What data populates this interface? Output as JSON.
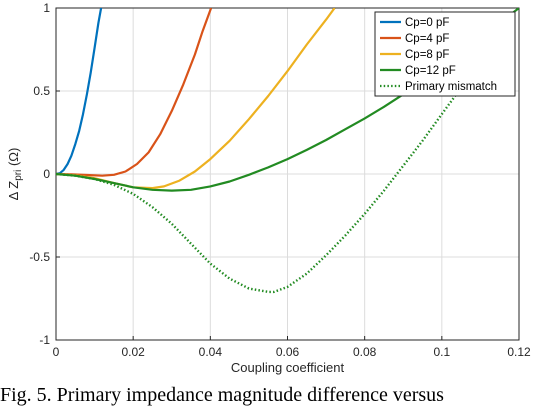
{
  "caption": "Fig. 5. Primary impedance  magnitude difference versus",
  "chart_data": {
    "type": "line",
    "title": "",
    "xlabel": "Coupling coefficient",
    "ylabel_main": "Δ Z",
    "ylabel_sub": "pri",
    "ylabel_unit": " (Ω)",
    "xlim": [
      0,
      0.12
    ],
    "ylim": [
      -1,
      1
    ],
    "xticks": [
      0,
      0.02,
      0.04,
      0.06,
      0.08,
      0.1,
      0.12
    ],
    "xtick_labels": [
      "0",
      "0.02",
      "0.04",
      "0.06",
      "0.08",
      "0.1",
      "0.12"
    ],
    "yticks": [
      -1,
      -0.5,
      0,
      0.5,
      1
    ],
    "ytick_labels": [
      "-1",
      "-0.5",
      "0",
      "0.5",
      "1"
    ],
    "grid": true,
    "legend_position": "top-right",
    "series": [
      {
        "name": "Cp=0 pF",
        "color": "#0072BD",
        "style": "solid",
        "x": [
          0,
          0.001,
          0.002,
          0.003,
          0.004,
          0.005,
          0.006,
          0.007,
          0.008,
          0.009,
          0.01,
          0.011,
          0.0117
        ],
        "y": [
          0,
          0.005,
          0.025,
          0.06,
          0.11,
          0.18,
          0.26,
          0.36,
          0.48,
          0.61,
          0.76,
          0.91,
          1.0
        ]
      },
      {
        "name": "Cp=4 pF",
        "color": "#D95319",
        "style": "solid",
        "x": [
          0,
          0.004,
          0.008,
          0.012,
          0.015,
          0.018,
          0.021,
          0.024,
          0.027,
          0.03,
          0.033,
          0.036,
          0.038,
          0.0402
        ],
        "y": [
          0,
          -0.002,
          -0.006,
          -0.01,
          -0.005,
          0.015,
          0.06,
          0.13,
          0.24,
          0.38,
          0.54,
          0.72,
          0.86,
          1.0
        ]
      },
      {
        "name": "Cp=8 pF",
        "color": "#EDB120",
        "style": "solid",
        "x": [
          0,
          0.005,
          0.01,
          0.015,
          0.02,
          0.025,
          0.028,
          0.032,
          0.036,
          0.04,
          0.045,
          0.05,
          0.055,
          0.06,
          0.065,
          0.07,
          0.0722
        ],
        "y": [
          0,
          -0.008,
          -0.025,
          -0.055,
          -0.08,
          -0.085,
          -0.075,
          -0.04,
          0.015,
          0.09,
          0.2,
          0.33,
          0.47,
          0.62,
          0.78,
          0.93,
          1.0
        ]
      },
      {
        "name": "Cp=12 pF",
        "color": "#228B22",
        "style": "solid",
        "x": [
          0,
          0.005,
          0.01,
          0.015,
          0.02,
          0.025,
          0.03,
          0.035,
          0.04,
          0.045,
          0.05,
          0.055,
          0.06,
          0.065,
          0.07,
          0.075,
          0.08,
          0.085,
          0.09,
          0.095,
          0.1,
          0.105,
          0.11,
          0.115,
          0.12
        ],
        "y": [
          0,
          -0.01,
          -0.03,
          -0.055,
          -0.08,
          -0.095,
          -0.1,
          -0.095,
          -0.075,
          -0.045,
          -0.005,
          0.04,
          0.09,
          0.145,
          0.205,
          0.27,
          0.335,
          0.405,
          0.48,
          0.56,
          0.645,
          0.73,
          0.82,
          0.91,
          1.0
        ]
      },
      {
        "name": "Primary mismatch",
        "color": "#228B22",
        "style": "dotted",
        "x": [
          0,
          0.005,
          0.01,
          0.015,
          0.02,
          0.025,
          0.03,
          0.035,
          0.04,
          0.045,
          0.05,
          0.055,
          0.0565,
          0.06,
          0.065,
          0.07,
          0.075,
          0.08,
          0.085,
          0.09,
          0.095,
          0.1,
          0.105,
          0.11,
          0.115,
          0.118
        ],
        "y": [
          0,
          -0.01,
          -0.03,
          -0.065,
          -0.12,
          -0.2,
          -0.3,
          -0.42,
          -0.54,
          -0.63,
          -0.69,
          -0.71,
          -0.71,
          -0.68,
          -0.6,
          -0.49,
          -0.37,
          -0.24,
          -0.1,
          0.05,
          0.2,
          0.36,
          0.52,
          0.68,
          0.85,
          0.95
        ]
      }
    ]
  }
}
